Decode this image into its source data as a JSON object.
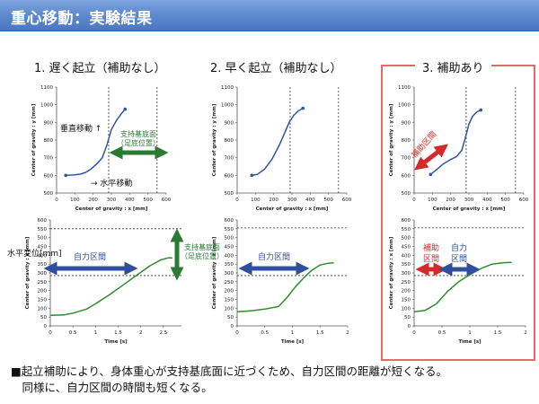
{
  "header": {
    "title": "重心移動：実験結果"
  },
  "panels": [
    {
      "title": "1. 遅く起立（補助なし）"
    },
    {
      "title": "2. 早く起立（補助なし）"
    },
    {
      "title": "3. 補助あり"
    }
  ],
  "annotations": {
    "vertical_move": "垂直移動 ↑",
    "horizontal_move": "→ 水平移動",
    "support_base_1": "支持基底面",
    "support_base_2": "（足底位置）",
    "horizontal_disp": "水平変位[mm]",
    "own_force_section": "自力区間",
    "assist_section": "補助区間",
    "assist_split_1": "補助",
    "assist_split_2": "区間",
    "own_split_1": "自力",
    "own_split_2": "区間"
  },
  "axes": {
    "top_ylabel": "Center of gravity : y [mm]",
    "top_xlabel": "Center of gravity : x [mm]",
    "bottom_ylabel": "Center of gravity : x [mm]",
    "bottom_xlabel": "Time [s]"
  },
  "conclusion": {
    "line1": "■起立補助により、身体重心が支持基底面に近づくため、自力区間の距離が短くなる。",
    "line2": "　同様に、自力区間の時間も短くなる。"
  },
  "colors": {
    "header": "#5a86cf",
    "curve": "#2f54a8",
    "curve_green": "#2e8b2e",
    "arrow_blue": "#2f4f9e",
    "arrow_green": "#2a7a33",
    "arrow_red": "#d42a2a",
    "frame_red": "#e46a6a"
  },
  "chart_data": [
    {
      "type": "line",
      "panel": "1. 遅く起立（補助なし）",
      "xlim": [
        0,
        600
      ],
      "ylim": [
        500,
        1100
      ],
      "xticks": [
        0,
        100,
        200,
        300,
        400,
        500,
        600
      ],
      "yticks": [
        500,
        600,
        700,
        800,
        900,
        1000,
        1100
      ],
      "x": [
        50,
        90,
        130,
        160,
        190,
        220,
        250,
        275,
        300,
        330,
        355,
        375
      ],
      "y": [
        600,
        602,
        607,
        617,
        637,
        665,
        700,
        770,
        860,
        915,
        950,
        975
      ],
      "vlines": [
        285,
        550
      ]
    },
    {
      "type": "line",
      "panel": "1. 遅く起立（補助なし）",
      "xlim": [
        0,
        2.9
      ],
      "ylim": [
        0,
        600
      ],
      "xticks": [
        0,
        0.5,
        1,
        1.5,
        2,
        2.5
      ],
      "yticks": [
        0,
        50,
        100,
        150,
        200,
        250,
        300,
        350,
        400,
        450,
        500,
        550,
        600
      ],
      "x": [
        0,
        0.3,
        0.5,
        0.8,
        1.0,
        1.3,
        1.6,
        1.9,
        2.2,
        2.45,
        2.6,
        2.7
      ],
      "y": [
        60,
        62,
        72,
        95,
        125,
        175,
        230,
        285,
        340,
        375,
        385,
        385
      ],
      "hlines": [
        285,
        550
      ]
    },
    {
      "type": "line",
      "panel": "2. 早く起立（補助なし）",
      "xlim": [
        0,
        600
      ],
      "ylim": [
        500,
        1100
      ],
      "xticks": [
        0,
        100,
        200,
        300,
        400,
        500,
        600
      ],
      "yticks": [
        500,
        600,
        700,
        800,
        900,
        1000,
        1100
      ],
      "x": [
        80,
        110,
        150,
        190,
        230,
        260,
        285,
        310,
        335,
        360
      ],
      "y": [
        600,
        605,
        635,
        690,
        770,
        840,
        900,
        940,
        965,
        980
      ],
      "vlines": [
        290,
        555
      ]
    },
    {
      "type": "line",
      "panel": "2. 早く起立（補助なし）",
      "xlim": [
        0,
        2
      ],
      "ylim": [
        0,
        600
      ],
      "xticks": [
        0,
        0.5,
        1,
        1.5,
        2
      ],
      "yticks": [
        0,
        50,
        100,
        150,
        200,
        250,
        300,
        350,
        400,
        450,
        500,
        550,
        600
      ],
      "x": [
        0,
        0.25,
        0.5,
        0.75,
        0.9,
        1.05,
        1.2,
        1.35,
        1.5,
        1.65,
        1.75
      ],
      "y": [
        80,
        85,
        95,
        110,
        160,
        220,
        270,
        315,
        345,
        355,
        357
      ],
      "hlines": [
        285,
        555
      ]
    },
    {
      "type": "line",
      "panel": "3. 補助あり",
      "xlim": [
        0,
        600
      ],
      "ylim": [
        500,
        1100
      ],
      "xticks": [
        0,
        100,
        200,
        300,
        400,
        500,
        600
      ],
      "yticks": [
        500,
        600,
        700,
        800,
        900,
        1000,
        1100
      ],
      "x": [
        90,
        120,
        160,
        200,
        230,
        260,
        280,
        300,
        320,
        345,
        365
      ],
      "y": [
        605,
        630,
        665,
        690,
        705,
        740,
        810,
        890,
        935,
        960,
        970
      ],
      "vlines": [
        285,
        555
      ]
    },
    {
      "type": "line",
      "panel": "3. 補助あり",
      "xlim": [
        0,
        2
      ],
      "ylim": [
        0,
        600
      ],
      "xticks": [
        0,
        0.5,
        1,
        1.5,
        2
      ],
      "yticks": [
        0,
        50,
        100,
        150,
        200,
        250,
        300,
        350,
        400,
        450,
        500,
        550,
        600
      ],
      "x": [
        0,
        0.2,
        0.4,
        0.6,
        0.8,
        1.0,
        1.2,
        1.4,
        1.6,
        1.75
      ],
      "y": [
        80,
        88,
        125,
        195,
        250,
        290,
        325,
        350,
        358,
        360
      ],
      "hlines": [
        285,
        555
      ]
    }
  ]
}
